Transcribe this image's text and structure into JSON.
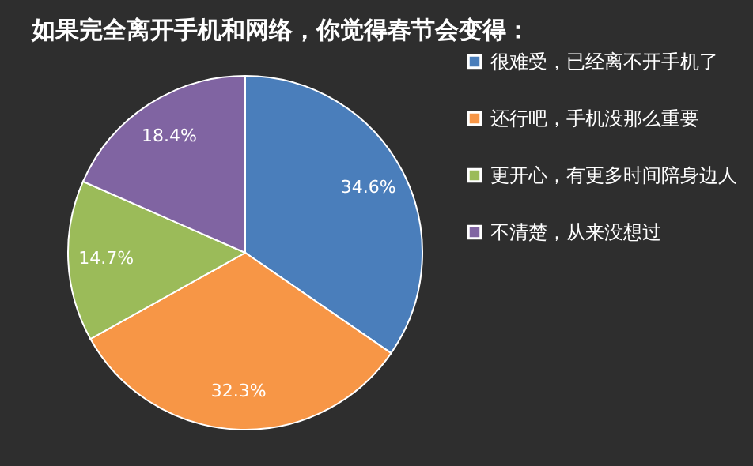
{
  "chart_data": {
    "type": "pie",
    "title": "如果完全离开手机和网络，你觉得春节会变得：",
    "categories": [
      "很难受，已经离不开手机了",
      "还行吧，手机没那么重要",
      "更开心，有更多时间陪身边人",
      "不清楚，从来没想过"
    ],
    "values": [
      34.6,
      32.3,
      14.7,
      18.4
    ],
    "colors": [
      "#4a7ebb",
      "#f79646",
      "#9bbb59",
      "#8064a2"
    ],
    "value_labels": [
      "34.6%",
      "32.3%",
      "14.7%",
      "18.4%"
    ],
    "legend": "right"
  }
}
